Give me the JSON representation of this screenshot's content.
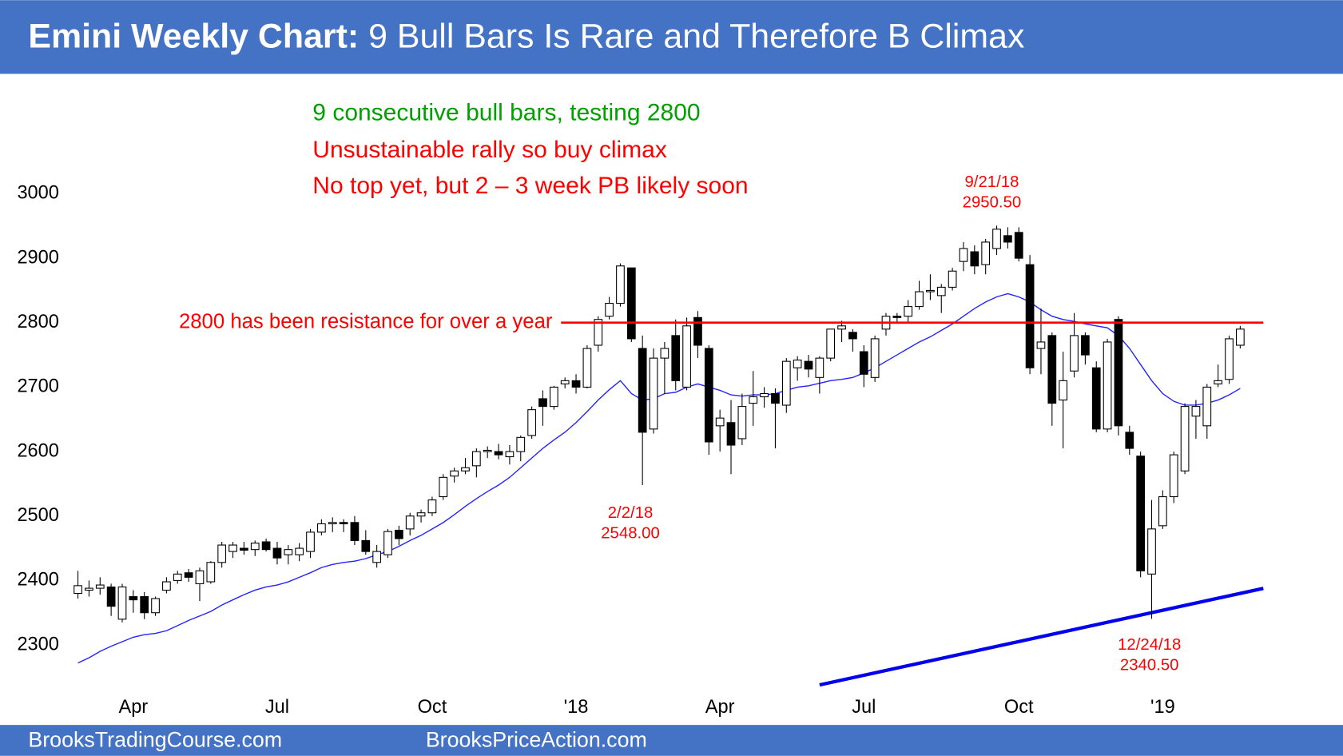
{
  "header": {
    "title_bold": "Emini Weekly Chart:",
    "title_rest": "9 Bull Bars Is Rare and Therefore B Climax"
  },
  "footer": {
    "left": "BrooksTradingCourse.com",
    "right": "BrooksPriceAction.com"
  },
  "chart_data": {
    "type": "candlestick",
    "categories": [
      null,
      null,
      null,
      null,
      null,
      "Apr",
      null,
      null,
      null,
      null,
      null,
      null,
      null,
      null,
      null,
      null,
      null,
      null,
      "Jul",
      null,
      null,
      null,
      null,
      null,
      null,
      null,
      null,
      null,
      null,
      null,
      null,
      null,
      "Oct",
      null,
      null,
      null,
      null,
      null,
      null,
      null,
      null,
      null,
      null,
      null,
      null,
      "'18",
      null,
      null,
      null,
      null,
      null,
      null,
      null,
      null,
      null,
      null,
      null,
      null,
      "Apr",
      null,
      null,
      null,
      null,
      null,
      null,
      null,
      null,
      null,
      null,
      null,
      null,
      "Jul",
      null,
      null,
      null,
      null,
      null,
      null,
      null,
      null,
      null,
      null,
      null,
      null,
      null,
      "Oct",
      null,
      null,
      null,
      null,
      null,
      null,
      null,
      null,
      null,
      null,
      null,
      null,
      "'19",
      null,
      null,
      null,
      null,
      null,
      null,
      null
    ],
    "ohlc": {
      "up_color": "#ffffff",
      "down_color": "#000000",
      "open": [
        2380,
        2385,
        2388,
        2390,
        2340,
        2375,
        2375,
        2350,
        2385,
        2400,
        2412,
        2395,
        2398,
        2428,
        2445,
        2450,
        2448,
        2460,
        2450,
        2440,
        2440,
        2445,
        2475,
        2488,
        2490,
        2490,
        2462,
        2428,
        2440,
        2478,
        2480,
        2500,
        2505,
        2530,
        2562,
        2570,
        2578,
        2600,
        2600,
        2592,
        2600,
        2625,
        2682,
        2670,
        2705,
        2710,
        2700,
        2765,
        2810,
        2830,
        2885,
        2760,
        2635,
        2745,
        2780,
        2700,
        2808,
        2760,
        2640,
        2645,
        2620,
        2675,
        2685,
        2690,
        2672,
        2730,
        2740,
        2715,
        2745,
        2790,
        2785,
        2755,
        2715,
        2790,
        2810,
        2810,
        2825,
        2848,
        2842,
        2855,
        2895,
        2910,
        2890,
        2915,
        2935,
        2940,
        2890,
        2760,
        2780,
        2680,
        2725,
        2780,
        2730,
        2635,
        2805,
        2630,
        2593,
        2410,
        2485,
        2530,
        2570,
        2655,
        2640,
        2705,
        2712,
        2765
      ],
      "high": [
        2415,
        2400,
        2405,
        2395,
        2395,
        2385,
        2382,
        2375,
        2405,
        2415,
        2418,
        2420,
        2430,
        2460,
        2460,
        2460,
        2462,
        2465,
        2460,
        2455,
        2458,
        2480,
        2495,
        2498,
        2495,
        2500,
        2478,
        2455,
        2480,
        2485,
        2505,
        2510,
        2530,
        2565,
        2575,
        2590,
        2605,
        2608,
        2612,
        2610,
        2625,
        2670,
        2695,
        2702,
        2715,
        2720,
        2765,
        2810,
        2840,
        2892,
        2885,
        2780,
        2760,
        2770,
        2805,
        2808,
        2818,
        2765,
        2665,
        2680,
        2690,
        2725,
        2700,
        2698,
        2745,
        2748,
        2750,
        2748,
        2790,
        2803,
        2790,
        2765,
        2780,
        2815,
        2815,
        2835,
        2865,
        2875,
        2860,
        2885,
        2925,
        2920,
        2930,
        2950.5,
        2948,
        2948,
        2905,
        2822,
        2785,
        2755,
        2815,
        2785,
        2740,
        2775,
        2810,
        2640,
        2600,
        2525,
        2540,
        2600,
        2675,
        2680,
        2705,
        2735,
        2780,
        2795
      ],
      "low": [
        2372,
        2375,
        2378,
        2345,
        2335,
        2350,
        2340,
        2345,
        2380,
        2395,
        2398,
        2368,
        2395,
        2420,
        2435,
        2440,
        2438,
        2445,
        2425,
        2425,
        2430,
        2435,
        2470,
        2475,
        2475,
        2455,
        2440,
        2420,
        2435,
        2455,
        2470,
        2490,
        2500,
        2525,
        2552,
        2565,
        2560,
        2590,
        2588,
        2580,
        2585,
        2620,
        2640,
        2665,
        2698,
        2690,
        2698,
        2755,
        2805,
        2825,
        2770,
        2548,
        2628,
        2690,
        2695,
        2695,
        2745,
        2595,
        2600,
        2565,
        2610,
        2640,
        2668,
        2605,
        2660,
        2710,
        2715,
        2690,
        2740,
        2770,
        2755,
        2700,
        2708,
        2780,
        2800,
        2800,
        2820,
        2835,
        2815,
        2850,
        2880,
        2875,
        2875,
        2905,
        2915,
        2895,
        2720,
        2720,
        2640,
        2605,
        2715,
        2735,
        2630,
        2630,
        2625,
        2595,
        2405,
        2340.5,
        2480,
        2520,
        2565,
        2620,
        2620,
        2700,
        2705,
        2760
      ],
      "close": [
        2392,
        2388,
        2393,
        2360,
        2390,
        2370,
        2350,
        2372,
        2398,
        2410,
        2405,
        2415,
        2428,
        2455,
        2455,
        2447,
        2458,
        2448,
        2435,
        2448,
        2450,
        2475,
        2488,
        2490,
        2488,
        2462,
        2445,
        2445,
        2476,
        2465,
        2500,
        2505,
        2525,
        2560,
        2570,
        2575,
        2600,
        2602,
        2595,
        2600,
        2622,
        2665,
        2670,
        2700,
        2710,
        2700,
        2760,
        2805,
        2830,
        2888,
        2775,
        2630,
        2745,
        2760,
        2710,
        2795,
        2765,
        2615,
        2652,
        2610,
        2670,
        2685,
        2690,
        2675,
        2740,
        2742,
        2728,
        2745,
        2790,
        2795,
        2775,
        2720,
        2775,
        2810,
        2808,
        2825,
        2848,
        2850,
        2855,
        2880,
        2915,
        2888,
        2925,
        2945,
        2925,
        2900,
        2730,
        2770,
        2675,
        2710,
        2780,
        2750,
        2635,
        2770,
        2640,
        2605,
        2415,
        2480,
        2530,
        2595,
        2670,
        2670,
        2700,
        2710,
        2775,
        2790
      ]
    },
    "moving_average": {
      "color": "#2323ff",
      "values": [
        2272,
        2280,
        2290,
        2298,
        2305,
        2312,
        2316,
        2318,
        2322,
        2330,
        2338,
        2345,
        2352,
        2362,
        2370,
        2378,
        2385,
        2390,
        2393,
        2398,
        2405,
        2412,
        2420,
        2425,
        2428,
        2430,
        2434,
        2440,
        2445,
        2453,
        2462,
        2470,
        2480,
        2490,
        2502,
        2515,
        2527,
        2538,
        2548,
        2560,
        2575,
        2590,
        2605,
        2618,
        2630,
        2645,
        2662,
        2680,
        2696,
        2710,
        2690,
        2680,
        2682,
        2690,
        2692,
        2700,
        2705,
        2700,
        2695,
        2688,
        2686,
        2688,
        2688,
        2690,
        2695,
        2700,
        2702,
        2706,
        2710,
        2712,
        2715,
        2722,
        2730,
        2740,
        2750,
        2760,
        2770,
        2778,
        2788,
        2798,
        2810,
        2822,
        2832,
        2840,
        2845,
        2840,
        2832,
        2820,
        2810,
        2805,
        2802,
        2798,
        2795,
        2792,
        2780,
        2760,
        2735,
        2710,
        2690,
        2678,
        2672,
        2672,
        2675,
        2680,
        2688,
        2698
      ]
    },
    "trendline": {
      "color": "#0000ee",
      "values": [
        2238,
        2380
      ]
    },
    "resistance": {
      "value": 2800,
      "label": "2800 has been resistance for over a year",
      "color": "#ff0000"
    },
    "annotations": [
      {
        "text": "9 consecutive bull bars, testing 2800",
        "color": "#00a000"
      },
      {
        "text": "Unsustainable rally so buy climax",
        "color": "#ff0000"
      },
      {
        "text": "No top yet, but 2 – 3 week PB likely soon",
        "color": "#ff0000"
      }
    ],
    "extremes": [
      {
        "date": "9/21/18",
        "price": "2950.50"
      },
      {
        "date": "2/2/18",
        "price": "2548.00"
      },
      {
        "date": "12/24/18",
        "price": "2340.50"
      }
    ],
    "ylim": [
      2237,
      3186
    ],
    "yticks": [
      2300,
      2400,
      2500,
      2600,
      2700,
      2800,
      2900,
      3000
    ]
  }
}
